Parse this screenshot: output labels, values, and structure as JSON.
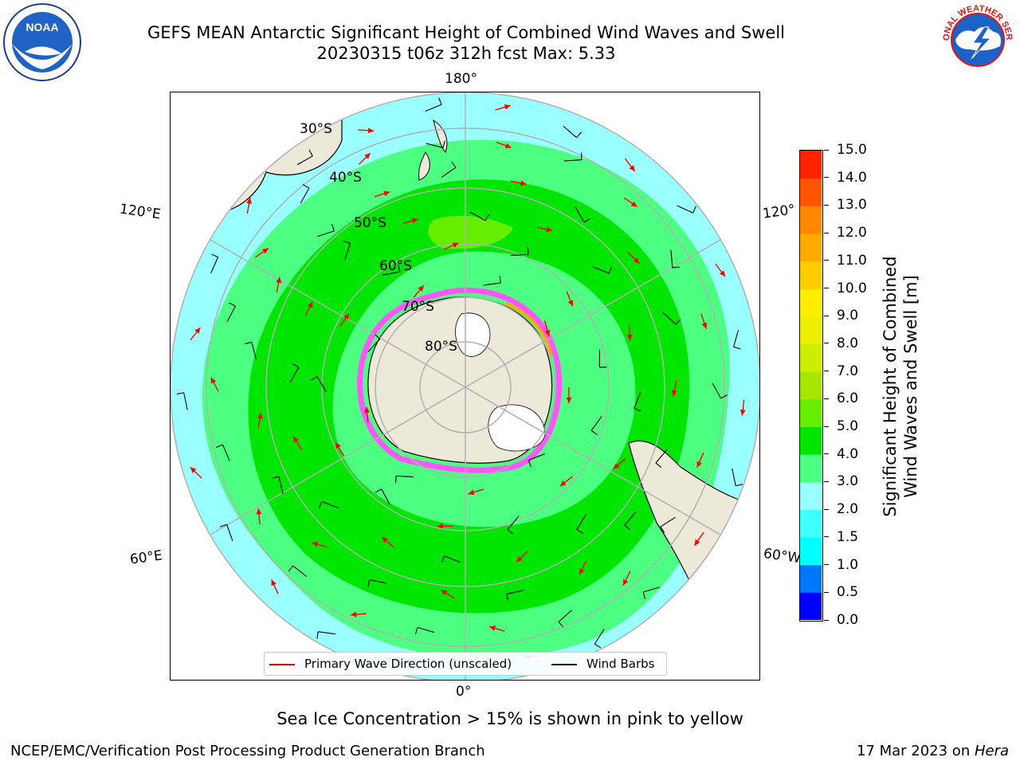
{
  "title": {
    "line1": "GEFS MEAN Antarctic Significant Height of Combined Wind Waves and Swell",
    "line2": "20230315 t06z 312h fcst   Max: 5.33"
  },
  "logos": {
    "left": {
      "name": "NOAA",
      "text": "NOAA"
    },
    "right": {
      "name": "National Weather Service",
      "text": "NATIONAL WEATHER SERVICE"
    }
  },
  "map": {
    "projection": "south-polar-stereographic",
    "longitude_labels": {
      "top": "180°",
      "bottom": "0°",
      "left_upper": "120°E",
      "left_lower": "60°E",
      "right_upper": "120°",
      "right_lower": "60°W"
    },
    "latitude_labels": [
      "30°S",
      "40°S",
      "50°S",
      "60°S",
      "70°S",
      "80°S"
    ],
    "colors": {
      "ocean_low": "#99ffff",
      "ocean_mid": "#4dff80",
      "ocean_high": "#00e600",
      "ocean_peak": "#66ee00",
      "land": "#ede9d8",
      "sea_ice": "#ff55ff",
      "grid": "#b0b0b0",
      "arrow": "#ff0000",
      "barb": "#000000"
    }
  },
  "colorbar": {
    "label_line1": "Significant Height of Combined",
    "label_line2": "Wind Waves and Swell [m]",
    "ticks": [
      "0.0",
      "0.5",
      "1.0",
      "1.5",
      "2.0",
      "3.0",
      "4.0",
      "5.0",
      "6.0",
      "7.0",
      "8.0",
      "9.0",
      "10.0",
      "11.0",
      "12.0",
      "13.0",
      "14.0",
      "15.0"
    ],
    "colors": [
      "#0000ff",
      "#0077ff",
      "#00ffff",
      "#40ffff",
      "#99ffff",
      "#4dff80",
      "#00e600",
      "#66ee00",
      "#a6e600",
      "#ccee00",
      "#eeee00",
      "#ffee00",
      "#ffcc00",
      "#ffaa00",
      "#ff8800",
      "#ff5500",
      "#ff2200",
      "#ff0000"
    ]
  },
  "legend": {
    "primary_wave": "Primary Wave Direction (unscaled)",
    "wind_barbs": "Wind Barbs"
  },
  "caption": "Sea Ice Concentration > 15% is shown in pink to yellow",
  "footer": {
    "left": "NCEP/EMC/Verification Post Processing Product Generation Branch",
    "right_prefix": "17 Mar 2023 on ",
    "right_host": "Hera"
  }
}
